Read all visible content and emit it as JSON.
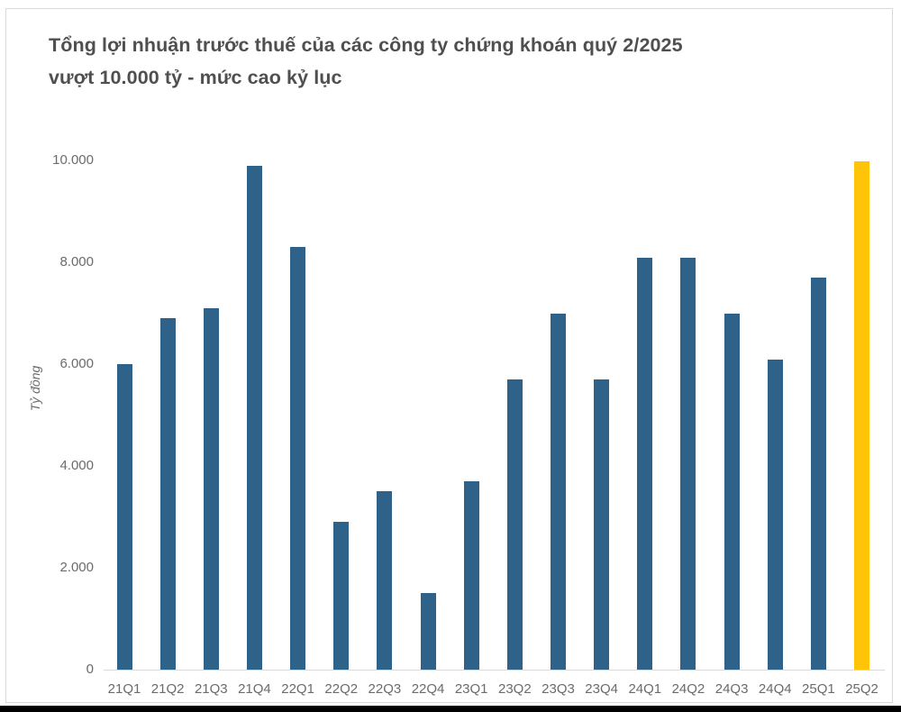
{
  "title": {
    "line1": "Tổng lợi nhuận trước thuế của các công ty chứng khoán quý 2/2025",
    "line2": "vượt 10.000 tỷ - mức cao kỷ lục"
  },
  "chart_data": {
    "type": "bar",
    "title": "Tổng lợi nhuận trước thuế của các công ty chứng khoán quý 2/2025 vượt 10.000 tỷ - mức cao kỷ lục",
    "ylabel": "Tỷ đồng",
    "xlabel": "",
    "categories": [
      "21Q1",
      "21Q2",
      "21Q3",
      "21Q4",
      "22Q1",
      "22Q2",
      "22Q3",
      "22Q4",
      "23Q1",
      "23Q2",
      "23Q3",
      "23Q4",
      "24Q1",
      "24Q2",
      "24Q3",
      "24Q4",
      "25Q1",
      "25Q2"
    ],
    "values": [
      6000,
      6900,
      7100,
      9900,
      8300,
      2900,
      3500,
      1500,
      3700,
      5700,
      7000,
      5700,
      8100,
      8100,
      7000,
      6100,
      7700,
      10000
    ],
    "unit": "tỷ đồng",
    "ylim": [
      0,
      10000
    ],
    "ytick_values": [
      0,
      2000,
      4000,
      6000,
      8000,
      10000
    ],
    "ytick_labels": [
      "0",
      "2.000",
      "4.000",
      "6.000",
      "8.000",
      "10.000"
    ],
    "grid": false,
    "legend": false,
    "colors": {
      "bar": "#2e6288",
      "highlight": "#ffc408",
      "axis_line": "#d9d9d9",
      "tick_text": "#6b6b6b",
      "title_text": "#4f4f4f"
    },
    "highlight_index": 17
  }
}
